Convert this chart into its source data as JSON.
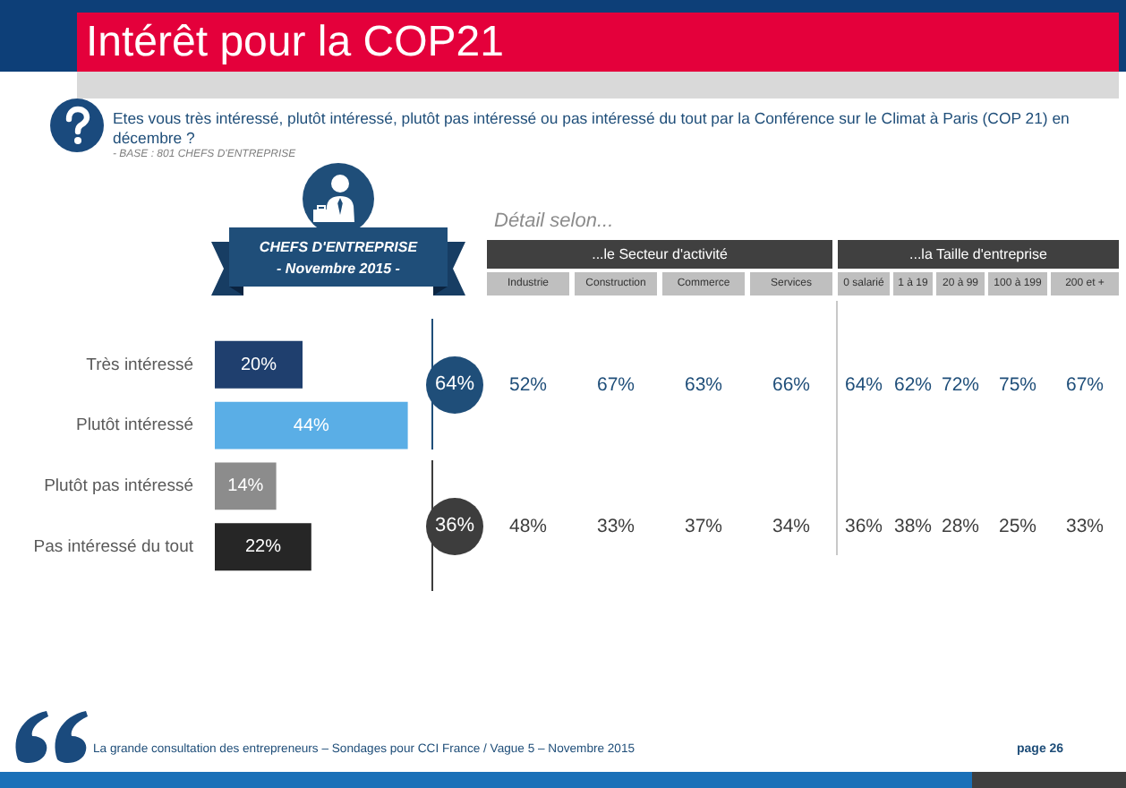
{
  "chart_data": [
    {
      "type": "bar",
      "orientation": "horizontal",
      "title": "Intérêt pour la COP21",
      "subtitle": "Etes vous très intéressé, plutôt intéressé, plutôt pas intéressé ou pas intéressé du tout par la Conférence sur le Climat à Paris (COP 21) en décembre ?",
      "categories": [
        "Très intéressé",
        "Plutôt intéressé",
        "Plutôt pas intéressé",
        "Pas intéressé du tout"
      ],
      "values": [
        20,
        44,
        14,
        22
      ],
      "colors": [
        "#1f3f6e",
        "#5aaee6",
        "#8c8c8c",
        "#262626"
      ],
      "value_labels": [
        "20%",
        "44%",
        "14%",
        "22%"
      ],
      "tick_labels": "y",
      "annotations": [
        "- BASE : 801 CHEFS D'ENTREPRISE",
        "CHEFS D'ENTREPRISE",
        "- Novembre 2015 -",
        "La grande consultation des entrepreneurs – Sondages pour CCI France / Vague 5 – Novembre 2015",
        "page 26"
      ]
    },
    {
      "type": "other",
      "title": "Détail selon...",
      "categories": [
        "Industrie",
        "Construction",
        "Commerce",
        "Services",
        "0 salarié",
        "1 à 19",
        "20 à 99",
        "100 à 199",
        "200 et +"
      ],
      "series": [
        {
          "color": "#1f4e79",
          "values": [
            52,
            67,
            63,
            66,
            64,
            62,
            72,
            75,
            67
          ],
          "value_labels": [
            "52%",
            "67%",
            "63%",
            "66%",
            "64%",
            "62%",
            "72%",
            "75%",
            "67%"
          ]
        },
        {
          "color": "#3d3d3d",
          "values": [
            48,
            33,
            37,
            34,
            36,
            38,
            28,
            25,
            33
          ],
          "value_labels": [
            "48%",
            "33%",
            "37%",
            "34%",
            "36%",
            "38%",
            "28%",
            "25%",
            "33%"
          ]
        }
      ],
      "annotations": [
        "...le Secteur d'activité",
        "...la Taille d'entreprise",
        "64%",
        "36%"
      ]
    }
  ]
}
